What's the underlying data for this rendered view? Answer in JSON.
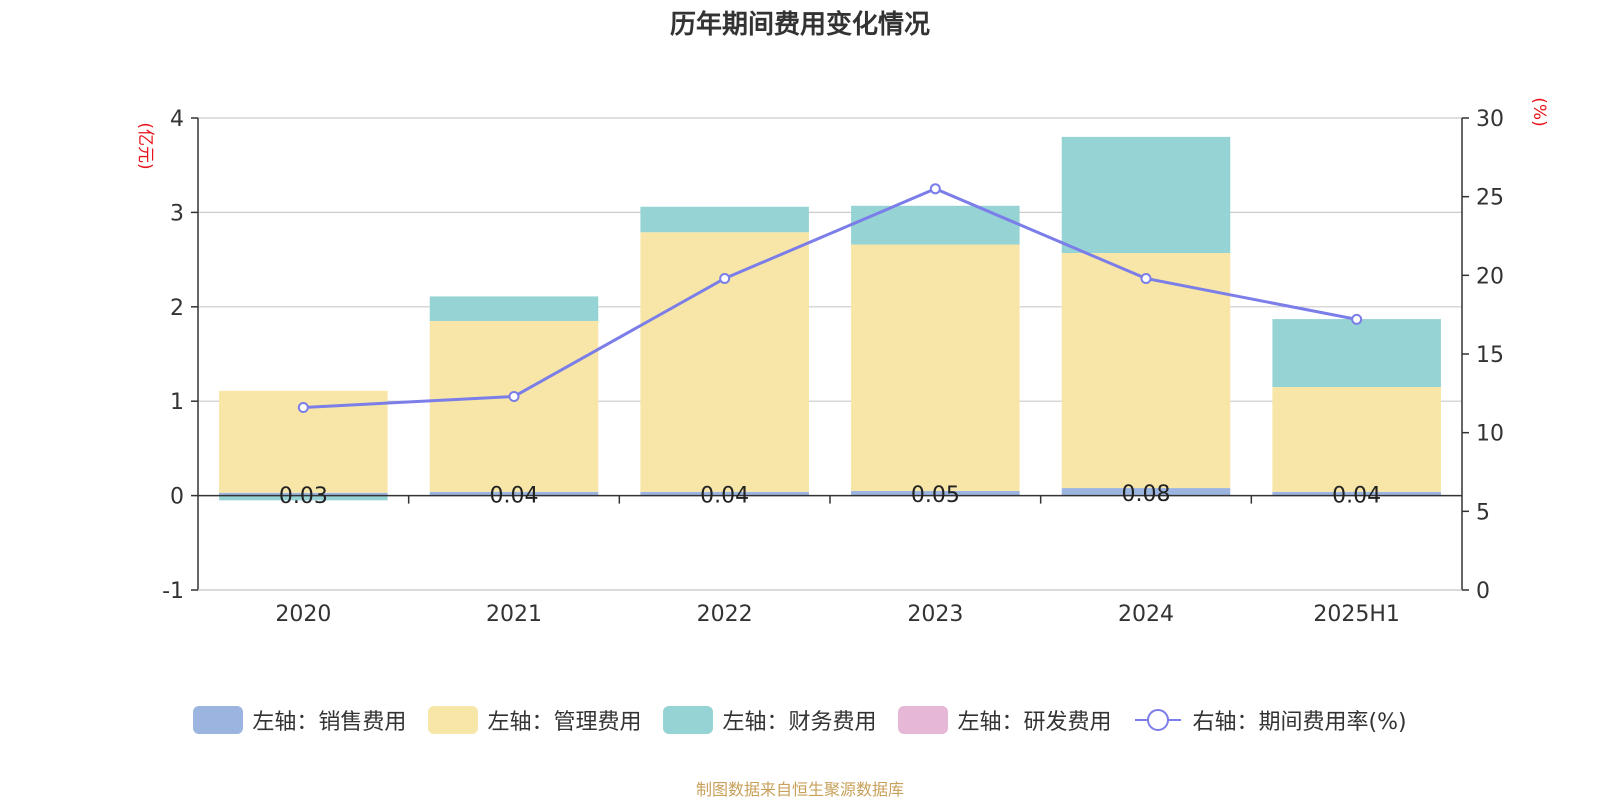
{
  "title": "历年期间费用变化情况",
  "source": "制图数据来自恒生聚源数据库",
  "chart_data": {
    "type": "bar",
    "stacked": true,
    "categories": [
      "2020",
      "2021",
      "2022",
      "2023",
      "2024",
      "2025H1"
    ],
    "y_left": {
      "unit": "(亿元)",
      "ylim": [
        -1,
        4
      ],
      "ticks": [
        -1,
        0,
        1,
        2,
        3,
        4
      ]
    },
    "y_right": {
      "unit": "(%)",
      "ylim": [
        0,
        30
      ],
      "ticks": [
        0,
        5,
        10,
        15,
        20,
        25,
        30
      ]
    },
    "grid": true,
    "legend_position": "bottom",
    "series": [
      {
        "name": "左轴：销售费用",
        "axis": "left",
        "type": "bar",
        "color": "#9bb5e0",
        "values": [
          0.03,
          0.04,
          0.04,
          0.05,
          0.08,
          0.04
        ],
        "data_labels": [
          "0.03",
          "0.04",
          "0.04",
          "0.05",
          "0.08",
          "0.04"
        ]
      },
      {
        "name": "左轴：管理费用",
        "axis": "left",
        "type": "bar",
        "color": "#f7e6a7",
        "values": [
          1.08,
          1.81,
          2.75,
          2.61,
          2.49,
          1.11
        ]
      },
      {
        "name": "左轴：财务费用",
        "axis": "left",
        "type": "bar",
        "color": "#96d3d4",
        "values": [
          -0.05,
          0.26,
          0.27,
          0.41,
          1.23,
          0.72
        ]
      },
      {
        "name": "左轴：研发费用",
        "axis": "left",
        "type": "bar",
        "color": "#e7b7d8",
        "values": [
          0,
          0,
          0,
          0,
          0,
          0
        ]
      },
      {
        "name": "右轴：期间费用率(%)",
        "axis": "right",
        "type": "line",
        "color": "#7b7ee8",
        "values": [
          11.6,
          12.3,
          19.8,
          25.5,
          19.8,
          17.2
        ]
      }
    ]
  }
}
